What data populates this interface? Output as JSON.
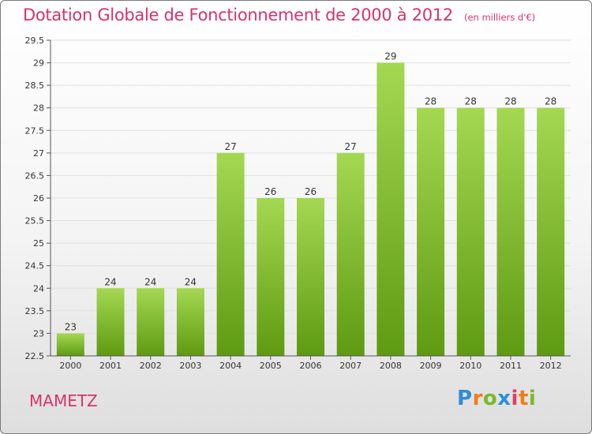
{
  "title": "Dotation Globale de Fonctionnement de 2000 à 2012",
  "unit_label": "(en milliers d'€)",
  "commune": "MAMETZ",
  "logo": {
    "text": "Proxiti",
    "letters": [
      "P",
      "r",
      "o",
      "x",
      "i",
      "t",
      "i"
    ]
  },
  "colors": {
    "title": "#d6336c",
    "bar_light": "#a5d852",
    "bar_dark": "#5e9a12",
    "grid": "#e0e0e0",
    "axis": "#555555"
  },
  "chart_data": {
    "type": "bar",
    "categories": [
      "2000",
      "2001",
      "2002",
      "2003",
      "2004",
      "2005",
      "2006",
      "2007",
      "2008",
      "2009",
      "2010",
      "2011",
      "2012"
    ],
    "values": [
      23,
      24,
      24,
      24,
      27,
      26,
      26,
      27,
      29,
      28,
      28,
      28,
      28
    ],
    "data_labels": [
      "23",
      "24",
      "24",
      "24",
      "27",
      "26",
      "26",
      "27",
      "29",
      "28",
      "28",
      "28",
      "28"
    ],
    "ylim": [
      22.5,
      29.5
    ],
    "yticks": [
      22.5,
      23,
      23.5,
      24,
      24.5,
      25,
      25.5,
      26,
      26.5,
      27,
      27.5,
      28,
      28.5,
      29,
      29.5
    ],
    "ytick_labels": [
      "22.5",
      "23",
      "23.5",
      "24",
      "24.5",
      "25",
      "25.5",
      "26",
      "26.5",
      "27",
      "27.5",
      "28",
      "28.5",
      "29",
      "29.5"
    ],
    "grid": true,
    "xlabel": "",
    "ylabel": ""
  }
}
